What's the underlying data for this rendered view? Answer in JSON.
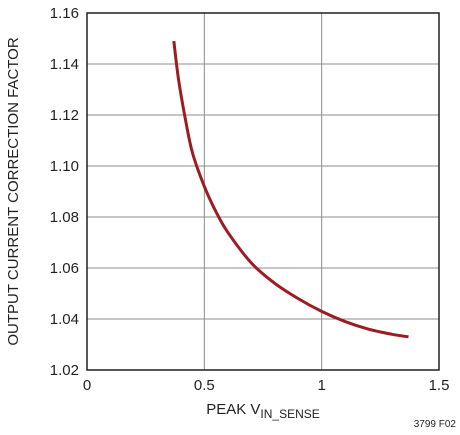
{
  "chart_data": {
    "type": "line",
    "title": "",
    "xlabel_main": "PEAK V",
    "xlabel_sub": "IN_SENSE",
    "ylabel": "OUTPUT CURRENT CORRECTION FACTOR",
    "figure_id": "3799 F02",
    "xlim": [
      0,
      1.5
    ],
    "ylim": [
      1.02,
      1.16
    ],
    "x_ticks": [
      0,
      0.5,
      1,
      1.5
    ],
    "x_tick_labels": [
      "0",
      "0.5",
      "1",
      "1.5"
    ],
    "y_ticks": [
      1.02,
      1.04,
      1.06,
      1.08,
      1.1,
      1.12,
      1.14,
      1.16
    ],
    "y_tick_labels": [
      "1.02",
      "1.04",
      "1.06",
      "1.08",
      "1.10",
      "1.12",
      "1.14",
      "1.16"
    ],
    "grid": true,
    "series": [
      {
        "color": "#9b1c23",
        "x": [
          0.37,
          0.39,
          0.42,
          0.45,
          0.5,
          0.55,
          0.6,
          0.7,
          0.8,
          0.9,
          1.0,
          1.1,
          1.2,
          1.3,
          1.37
        ],
        "y": [
          1.149,
          1.134,
          1.118,
          1.105,
          1.092,
          1.082,
          1.074,
          1.062,
          1.054,
          1.048,
          1.043,
          1.039,
          1.036,
          1.034,
          1.033
        ]
      }
    ]
  }
}
